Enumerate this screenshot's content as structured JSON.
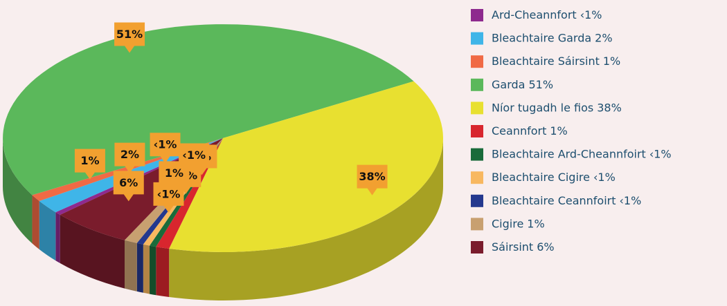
{
  "chart_data": {
    "type": "pie",
    "categories": [
      "Ard-Cheannfort",
      "Bleachtaire Garda",
      "Bleachtaire Sáirsint",
      "Garda",
      "Níor tugadh le fios",
      "Ceannfort",
      "Bleachtaire Ard-Cheannfoirt",
      "Bleachtaire Cigire",
      "Bleachtaire Ceannfoirt",
      "Cigire",
      "Sáirsint"
    ],
    "values": [
      0.5,
      2,
      1,
      51,
      38,
      1,
      0.5,
      0.5,
      0.5,
      1,
      6
    ],
    "value_labels": [
      "‹1%",
      "2%",
      "1%",
      "51%",
      "38%",
      "1%",
      "‹1%",
      "‹1%",
      "‹1%",
      "1%",
      "6%"
    ],
    "colors": [
      "#8e2a8e",
      "#3fb5e8",
      "#f06a45",
      "#5bb85b",
      "#e8e030",
      "#d8262e",
      "#1a6b3a",
      "#f8b860",
      "#24388e",
      "#c8a070",
      "#7a1c2c"
    ],
    "legend": "right"
  }
}
